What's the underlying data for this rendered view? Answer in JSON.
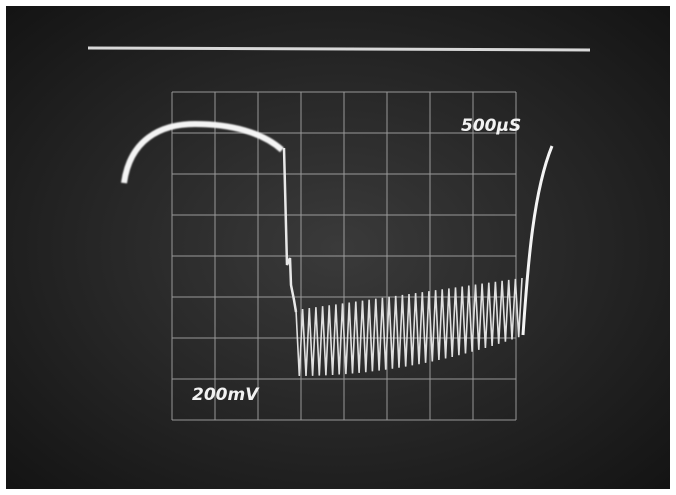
{
  "screen": {
    "timebase_label": "500µS",
    "voltage_label": "200mV"
  }
}
